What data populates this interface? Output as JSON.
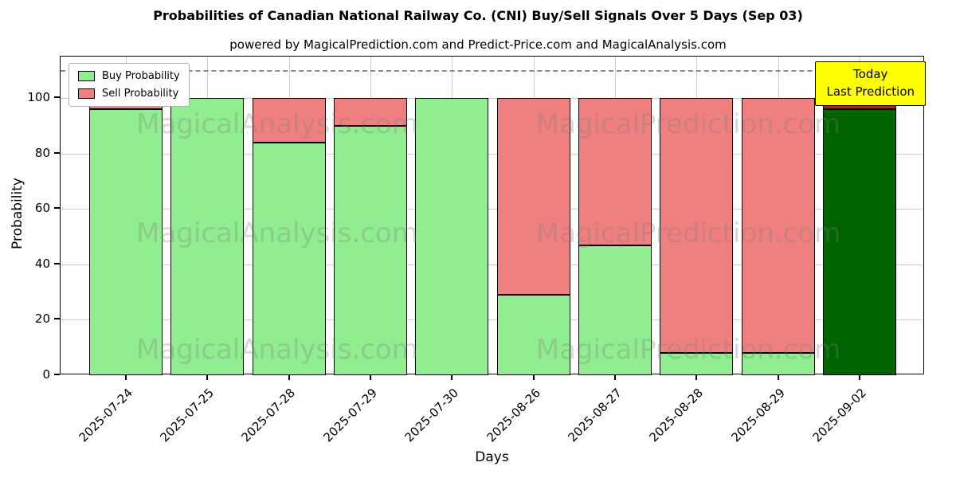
{
  "annotation": {
    "line1": "Today",
    "line2": "Last Prediction"
  },
  "watermarks": [
    "MagicalAnalysis.com",
    "MagicalPrediction.com"
  ],
  "chart_data": {
    "type": "bar",
    "stacked": true,
    "title": "Probabilities of Canadian National Railway Co. (CNI) Buy/Sell Signals Over 5 Days (Sep 03)",
    "subtitle": "powered by MagicalPrediction.com and Predict-Price.com and MagicalAnalysis.com",
    "xlabel": "Days",
    "ylabel": "Probability",
    "categories": [
      "2025-07-24",
      "2025-07-25",
      "2025-07-28",
      "2025-07-29",
      "2025-07-30",
      "2025-08-26",
      "2025-08-27",
      "2025-08-28",
      "2025-08-29",
      "2025-09-02"
    ],
    "series": [
      {
        "name": "Buy Probability",
        "color": "#90EE90",
        "values": [
          96,
          100,
          84,
          90,
          100,
          29,
          47,
          8,
          8,
          96
        ]
      },
      {
        "name": "Sell Probability",
        "color": "#F08080",
        "values": [
          4,
          0,
          16,
          10,
          0,
          71,
          53,
          92,
          92,
          4
        ]
      }
    ],
    "today_index": 9,
    "today_colors": {
      "buy": "#006400",
      "sell": "#FF0000"
    },
    "yticks": [
      0,
      20,
      40,
      60,
      80,
      100
    ],
    "ylim": [
      0,
      115
    ],
    "dashed_line_y": 110,
    "grid": true,
    "legend_position": "upper left"
  }
}
